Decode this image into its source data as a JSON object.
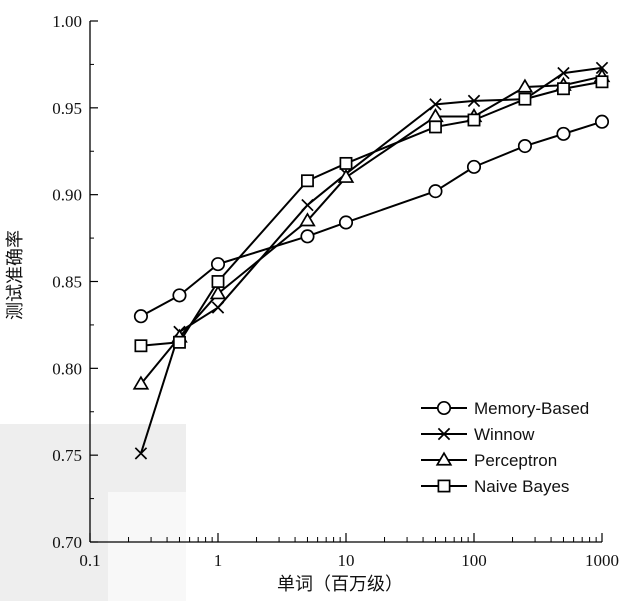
{
  "chart_data": {
    "type": "line",
    "title": "",
    "xlabel": "单词（百万级）",
    "ylabel": "测试准确率",
    "xscale": "log",
    "xlim": [
      0.1,
      1000
    ],
    "ylim": [
      0.7,
      1.0
    ],
    "xticks": [
      0.1,
      1,
      10,
      100,
      1000
    ],
    "xtick_labels": [
      "0.1",
      "1",
      "10",
      "100",
      "1000"
    ],
    "yticks": [
      0.7,
      0.75,
      0.8,
      0.85,
      0.9,
      0.95,
      1.0
    ],
    "ytick_labels": [
      "0.70",
      "0.75",
      "0.80",
      "0.85",
      "0.90",
      "0.95",
      "1.00"
    ],
    "legend_position": "bottom-right",
    "grid": false,
    "series": [
      {
        "name": "Memory-Based",
        "marker": "circle",
        "x": [
          0.25,
          0.5,
          1,
          5,
          10,
          50,
          100,
          250,
          500,
          1000
        ],
        "y": [
          0.83,
          0.842,
          0.86,
          0.876,
          0.884,
          0.902,
          0.916,
          0.928,
          0.935,
          0.942
        ]
      },
      {
        "name": "Winnow",
        "marker": "x",
        "x": [
          0.25,
          0.5,
          1,
          5,
          10,
          50,
          100,
          250,
          500,
          1000
        ],
        "y": [
          0.751,
          0.821,
          0.835,
          0.894,
          0.912,
          0.952,
          0.954,
          0.955,
          0.97,
          0.973
        ]
      },
      {
        "name": "Perceptron",
        "marker": "triangle",
        "x": [
          0.25,
          0.5,
          1,
          5,
          10,
          50,
          100,
          250,
          500,
          1000
        ],
        "y": [
          0.791,
          0.818,
          0.843,
          0.885,
          0.91,
          0.945,
          0.945,
          0.962,
          0.963,
          0.968
        ]
      },
      {
        "name": "Naive Bayes",
        "marker": "square",
        "x": [
          0.25,
          0.5,
          1,
          5,
          10,
          50,
          100,
          250,
          500,
          1000
        ],
        "y": [
          0.813,
          0.815,
          0.85,
          0.908,
          0.918,
          0.939,
          0.943,
          0.955,
          0.961,
          0.965
        ]
      }
    ]
  }
}
